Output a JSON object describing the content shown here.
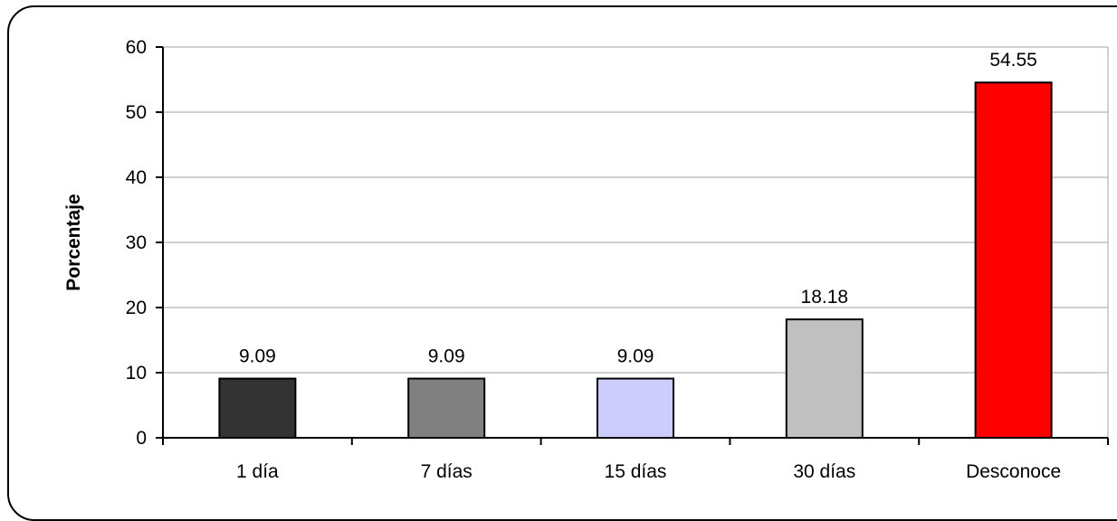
{
  "chart_data": {
    "type": "bar",
    "categories": [
      "1 día",
      "7 días",
      "15 días",
      "30 días",
      "Desconoce"
    ],
    "values": [
      9.09,
      9.09,
      9.09,
      18.18,
      54.55
    ],
    "data_labels": [
      "9.09",
      "9.09",
      "9.09",
      "18.18",
      "54.55"
    ],
    "bar_colors": [
      "#333333",
      "#808080",
      "#ccccff",
      "#c0c0c0",
      "#ff0000"
    ],
    "title": "",
    "xlabel": "",
    "ylabel": "Porcentaje",
    "ylim": [
      0,
      60
    ],
    "yticks": [
      0,
      10,
      20,
      30,
      40,
      50,
      60
    ],
    "grid": true,
    "legend": "none"
  }
}
